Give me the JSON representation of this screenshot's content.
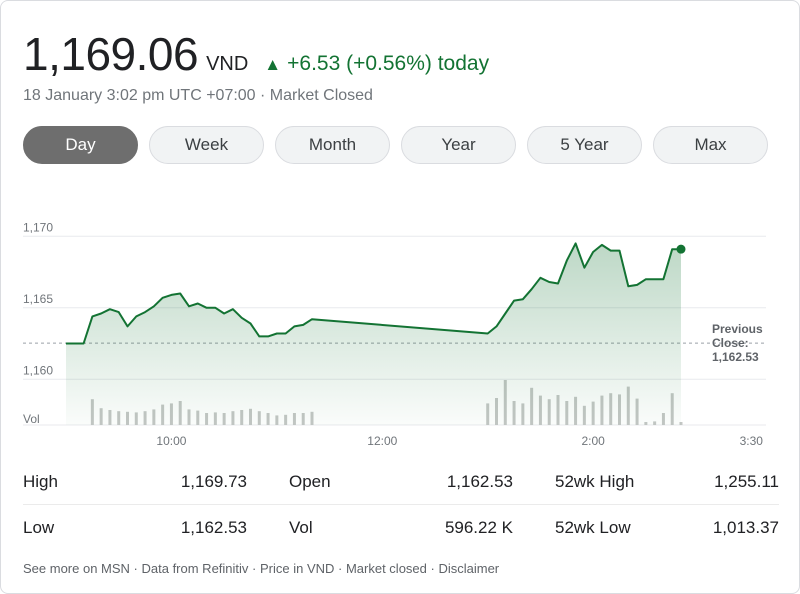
{
  "header": {
    "price": "1,169.06",
    "currency": "VND",
    "change_arrow": "▲",
    "change_text": "+6.53 (+0.56%) today",
    "subline": "18 January 3:02 pm UTC +07:00 · Market Closed",
    "positive_color": "#137333"
  },
  "tabs": [
    {
      "label": "Day",
      "active": true
    },
    {
      "label": "Week",
      "active": false
    },
    {
      "label": "Month",
      "active": false
    },
    {
      "label": "Year",
      "active": false
    },
    {
      "label": "5 Year",
      "active": false
    },
    {
      "label": "Max",
      "active": false
    }
  ],
  "chart_data": {
    "type": "line",
    "x_unit": "time of day",
    "x_ticks": [
      "10:00",
      "12:00",
      "2:00",
      "3:30"
    ],
    "y_ticks": [
      "1,160",
      "1,165",
      "1,170"
    ],
    "ylim": [
      1156.8,
      1171
    ],
    "vol_label": "Vol",
    "previous_close": 1162.53,
    "previous_close_label": [
      "Previous",
      "Close:",
      "1,162.53"
    ],
    "line_color": "#137333",
    "price_series": [
      {
        "t": "9:00",
        "v": 1162.5
      },
      {
        "t": "9:10",
        "v": 1162.5
      },
      {
        "t": "9:15",
        "v": 1164.4
      },
      {
        "t": "9:20",
        "v": 1164.6
      },
      {
        "t": "9:25",
        "v": 1164.9
      },
      {
        "t": "9:30",
        "v": 1164.7
      },
      {
        "t": "9:35",
        "v": 1163.7
      },
      {
        "t": "9:40",
        "v": 1164.4
      },
      {
        "t": "9:45",
        "v": 1164.7
      },
      {
        "t": "9:50",
        "v": 1165.1
      },
      {
        "t": "9:55",
        "v": 1165.7
      },
      {
        "t": "10:00",
        "v": 1165.9
      },
      {
        "t": "10:05",
        "v": 1166.0
      },
      {
        "t": "10:10",
        "v": 1165.1
      },
      {
        "t": "10:15",
        "v": 1165.3
      },
      {
        "t": "10:20",
        "v": 1165.0
      },
      {
        "t": "10:25",
        "v": 1165.0
      },
      {
        "t": "10:30",
        "v": 1164.6
      },
      {
        "t": "10:35",
        "v": 1164.9
      },
      {
        "t": "10:40",
        "v": 1164.3
      },
      {
        "t": "10:45",
        "v": 1163.9
      },
      {
        "t": "10:50",
        "v": 1163.0
      },
      {
        "t": "10:55",
        "v": 1163.0
      },
      {
        "t": "11:00",
        "v": 1163.2
      },
      {
        "t": "11:05",
        "v": 1163.2
      },
      {
        "t": "11:10",
        "v": 1163.7
      },
      {
        "t": "11:15",
        "v": 1163.8
      },
      {
        "t": "11:20",
        "v": 1164.2
      },
      {
        "t": "13:00",
        "v": 1163.2
      },
      {
        "t": "13:05",
        "v": 1163.7
      },
      {
        "t": "13:10",
        "v": 1164.6
      },
      {
        "t": "13:15",
        "v": 1165.5
      },
      {
        "t": "13:20",
        "v": 1165.6
      },
      {
        "t": "13:25",
        "v": 1166.3
      },
      {
        "t": "13:30",
        "v": 1167.1
      },
      {
        "t": "13:35",
        "v": 1166.8
      },
      {
        "t": "13:40",
        "v": 1166.7
      },
      {
        "t": "13:45",
        "v": 1168.3
      },
      {
        "t": "13:50",
        "v": 1169.5
      },
      {
        "t": "13:55",
        "v": 1167.8
      },
      {
        "t": "14:00",
        "v": 1168.9
      },
      {
        "t": "14:05",
        "v": 1169.4
      },
      {
        "t": "14:10",
        "v": 1169.0
      },
      {
        "t": "14:15",
        "v": 1169.0
      },
      {
        "t": "14:20",
        "v": 1166.5
      },
      {
        "t": "14:25",
        "v": 1166.6
      },
      {
        "t": "14:30",
        "v": 1167.0
      },
      {
        "t": "14:35",
        "v": 1167.0
      },
      {
        "t": "14:40",
        "v": 1167.0
      },
      {
        "t": "14:45",
        "v": 1169.1
      },
      {
        "t": "14:50",
        "v": 1169.1
      }
    ],
    "volume_series": [
      {
        "t": "9:15",
        "v": 0.43
      },
      {
        "t": "9:20",
        "v": 0.28
      },
      {
        "t": "9:25",
        "v": 0.25
      },
      {
        "t": "9:30",
        "v": 0.23
      },
      {
        "t": "9:35",
        "v": 0.22
      },
      {
        "t": "9:40",
        "v": 0.21
      },
      {
        "t": "9:45",
        "v": 0.23
      },
      {
        "t": "9:50",
        "v": 0.26
      },
      {
        "t": "9:55",
        "v": 0.34
      },
      {
        "t": "10:00",
        "v": 0.36
      },
      {
        "t": "10:05",
        "v": 0.4
      },
      {
        "t": "10:10",
        "v": 0.26
      },
      {
        "t": "10:15",
        "v": 0.24
      },
      {
        "t": "10:20",
        "v": 0.2
      },
      {
        "t": "10:25",
        "v": 0.21
      },
      {
        "t": "10:30",
        "v": 0.2
      },
      {
        "t": "10:35",
        "v": 0.23
      },
      {
        "t": "10:40",
        "v": 0.25
      },
      {
        "t": "10:45",
        "v": 0.27
      },
      {
        "t": "10:50",
        "v": 0.23
      },
      {
        "t": "10:55",
        "v": 0.2
      },
      {
        "t": "11:00",
        "v": 0.16
      },
      {
        "t": "11:05",
        "v": 0.17
      },
      {
        "t": "11:10",
        "v": 0.2
      },
      {
        "t": "11:15",
        "v": 0.2
      },
      {
        "t": "11:20",
        "v": 0.22
      },
      {
        "t": "13:00",
        "v": 0.36
      },
      {
        "t": "13:05",
        "v": 0.45
      },
      {
        "t": "13:10",
        "v": 0.75
      },
      {
        "t": "13:15",
        "v": 0.4
      },
      {
        "t": "13:20",
        "v": 0.36
      },
      {
        "t": "13:25",
        "v": 0.62
      },
      {
        "t": "13:30",
        "v": 0.49
      },
      {
        "t": "13:35",
        "v": 0.43
      },
      {
        "t": "13:40",
        "v": 0.5
      },
      {
        "t": "13:45",
        "v": 0.4
      },
      {
        "t": "13:50",
        "v": 0.47
      },
      {
        "t": "13:55",
        "v": 0.32
      },
      {
        "t": "14:00",
        "v": 0.39
      },
      {
        "t": "14:05",
        "v": 0.49
      },
      {
        "t": "14:10",
        "v": 0.53
      },
      {
        "t": "14:15",
        "v": 0.51
      },
      {
        "t": "14:20",
        "v": 0.64
      },
      {
        "t": "14:25",
        "v": 0.44
      },
      {
        "t": "14:30",
        "v": 0.05
      },
      {
        "t": "14:35",
        "v": 0.06
      },
      {
        "t": "14:40",
        "v": 0.2
      },
      {
        "t": "14:45",
        "v": 0.53
      },
      {
        "t": "14:50",
        "v": 0.05
      }
    ]
  },
  "stats": {
    "rows": [
      [
        {
          "label": "High",
          "value": "1,169.73"
        },
        {
          "label": "Open",
          "value": "1,162.53"
        },
        {
          "label": "52wk High",
          "value": "1,255.11"
        }
      ],
      [
        {
          "label": "Low",
          "value": "1,162.53"
        },
        {
          "label": "Vol",
          "value": "596.22 K"
        },
        {
          "label": "52wk Low",
          "value": "1,013.37"
        }
      ]
    ]
  },
  "footer": {
    "msn": "See more on MSN",
    "refinitiv": "Data from Refinitiv",
    "price_in": "Price in VND",
    "market_closed": "Market closed",
    "disclaimer": "Disclaimer",
    "separator": " · "
  }
}
